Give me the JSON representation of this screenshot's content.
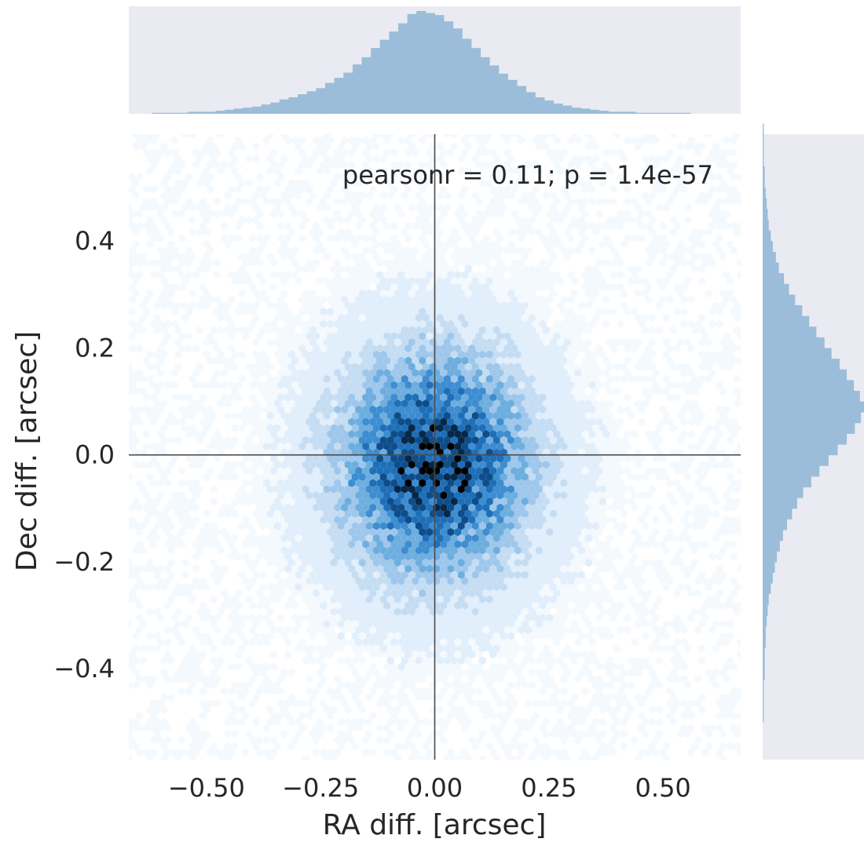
{
  "chart_data": {
    "type": "scatter",
    "variant": "jointplot-hexbin-with-marginal-histograms",
    "xlabel": "RA diff. [arcsec]",
    "ylabel": "Dec diff. [arcsec]",
    "annotation": "pearsonr = 0.11; p = 1.4e-57",
    "xlim": [
      -0.67,
      0.67
    ],
    "ylim": [
      -0.57,
      0.6
    ],
    "x_ticks": [
      {
        "value": -0.5,
        "label": "−0.50"
      },
      {
        "value": -0.25,
        "label": "−0.25"
      },
      {
        "value": 0.0,
        "label": "0.00"
      },
      {
        "value": 0.25,
        "label": "0.25"
      },
      {
        "value": 0.5,
        "label": "0.50"
      }
    ],
    "y_ticks": [
      {
        "value": 0.4,
        "label": "0.4"
      },
      {
        "value": 0.2,
        "label": "0.2"
      },
      {
        "value": 0.0,
        "label": "0.0"
      },
      {
        "value": -0.2,
        "label": "−0.2"
      },
      {
        "value": -0.4,
        "label": "−0.4"
      }
    ],
    "reference_lines": {
      "x": 0.0,
      "y": 0.0
    },
    "grid": false,
    "distribution": {
      "center_x": 0.0,
      "center_y": -0.02,
      "sigma_x": 0.11,
      "sigma_y": 0.11
    },
    "marginal_x": {
      "bin_start": -0.62,
      "bin_width": 0.02,
      "counts": [
        1,
        1,
        1,
        1,
        2,
        2,
        2,
        3,
        4,
        5,
        6,
        7,
        9,
        11,
        14,
        16,
        19,
        22,
        25,
        30,
        35,
        40,
        48,
        55,
        64,
        72,
        80,
        88,
        97,
        100,
        98,
        96,
        90,
        83,
        73,
        64,
        55,
        47,
        39,
        33,
        27,
        21,
        16,
        13,
        10,
        8,
        6,
        5,
        4,
        3,
        2,
        2,
        2,
        1,
        1,
        1,
        1,
        1,
        1
      ]
    },
    "marginal_y": {
      "bin_start": -0.5,
      "bin_width": 0.02,
      "counts": [
        1,
        1,
        1,
        1,
        2,
        2,
        2,
        3,
        3,
        4,
        5,
        6,
        8,
        10,
        12,
        14,
        17,
        20,
        24,
        29,
        34,
        40,
        48,
        56,
        65,
        74,
        83,
        91,
        97,
        100,
        96,
        90,
        83,
        76,
        68,
        61,
        53,
        46,
        39,
        32,
        26,
        21,
        16,
        13,
        10,
        8,
        6,
        5,
        4,
        3,
        2,
        2,
        1,
        1,
        1,
        1
      ],
      "max_value_norm": 100
    },
    "colors": {
      "hex_scale": [
        "#f4f9fe",
        "#e1eefb",
        "#c5ddf3",
        "#9fc7eb",
        "#6daedf",
        "#3d8dd0",
        "#1f6fb8",
        "#0e4d8a",
        "#062848",
        "#000000"
      ],
      "marginal_fill": "#9bbdd9",
      "marginal_bg": "#eaeaf2",
      "ref_line": "#4a4a4a"
    }
  }
}
